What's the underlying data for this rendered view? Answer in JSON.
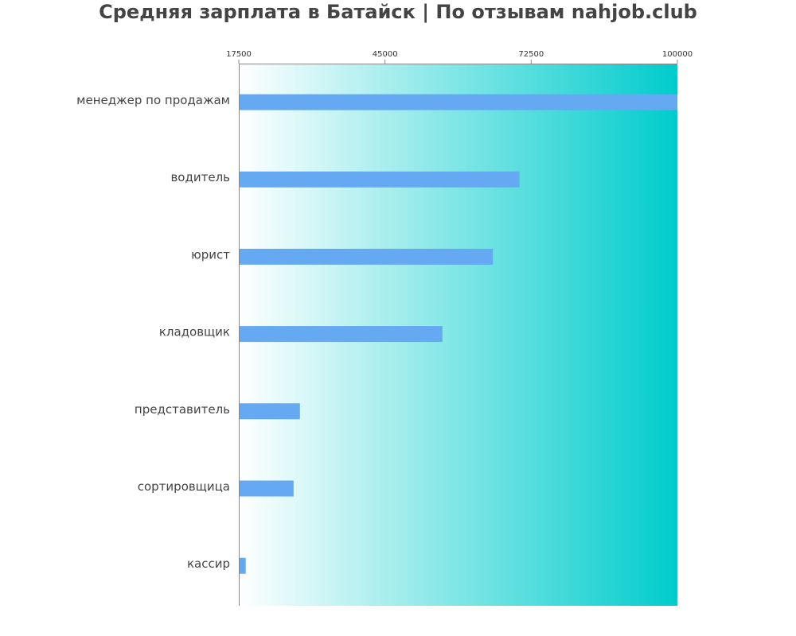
{
  "chart_data": {
    "type": "bar",
    "orientation": "horizontal",
    "title": "Средняя зарплата в Батайск | По отзывам nahjob.club",
    "categories": [
      "менеджер по продажам",
      "водитель",
      "юрист",
      "кладовщик",
      "представитель",
      "сортировщица",
      "кассир"
    ],
    "values": [
      100000,
      70300,
      65300,
      55800,
      29000,
      27800,
      18800
    ],
    "xlim": [
      17500,
      100000
    ],
    "x_ticks": [
      "17500",
      "45000",
      "72500",
      "100000"
    ],
    "x_tick_values": [
      17500,
      45000,
      72500,
      100000
    ],
    "xlabel": "",
    "ylabel": "",
    "grid": false,
    "legend": "none",
    "bar_color": "#64a9f2",
    "background_gradient": [
      "#ffffff",
      "#00cccc"
    ],
    "axis_color": "#888888"
  }
}
